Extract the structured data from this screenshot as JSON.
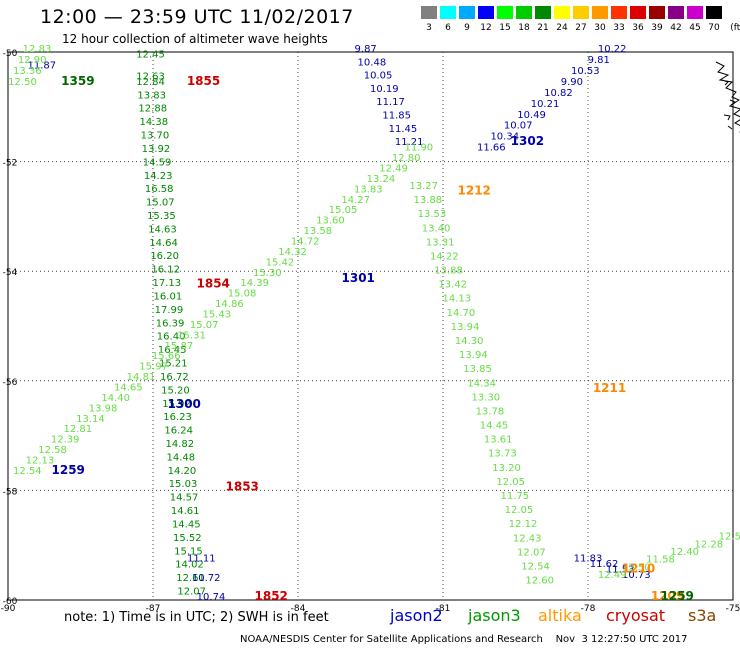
{
  "header": {
    "title": "12:00 — 23:59 UTC 11/02/2017",
    "subtitle": "12 hour collection of altimeter wave heights"
  },
  "colorbar": {
    "unit": "(ft)",
    "swatches": [
      {
        "label": "3",
        "color": "#808080"
      },
      {
        "label": "6",
        "color": "#00ffff"
      },
      {
        "label": "9",
        "color": "#00aaff"
      },
      {
        "label": "12",
        "color": "#0000ff"
      },
      {
        "label": "15",
        "color": "#00ff00"
      },
      {
        "label": "18",
        "color": "#00cc00"
      },
      {
        "label": "21",
        "color": "#008800"
      },
      {
        "label": "24",
        "color": "#ffff00"
      },
      {
        "label": "27",
        "color": "#ffcc00"
      },
      {
        "label": "30",
        "color": "#ff9900"
      },
      {
        "label": "33",
        "color": "#ff3300"
      },
      {
        "label": "36",
        "color": "#dd0000"
      },
      {
        "label": "39",
        "color": "#990000"
      },
      {
        "label": "42",
        "color": "#880088"
      },
      {
        "label": "45",
        "color": "#cc00cc"
      },
      {
        "label": "70",
        "color": "#000000"
      }
    ]
  },
  "axes": {
    "x_ticks": [
      {
        "lon": -90,
        "label": "-90"
      },
      {
        "lon": -87,
        "label": "-87"
      },
      {
        "lon": -84,
        "label": "-84"
      },
      {
        "lon": -81,
        "label": "-81"
      },
      {
        "lon": -78,
        "label": "-78"
      },
      {
        "lon": -75,
        "label": "-75"
      }
    ],
    "y_ticks": [
      {
        "lat": -50,
        "label": "-50"
      },
      {
        "lat": -52,
        "label": "-52"
      },
      {
        "lat": -54,
        "label": "-54"
      },
      {
        "lat": -56,
        "label": "-56"
      },
      {
        "lat": -58,
        "label": "-58"
      },
      {
        "lat": -60,
        "label": "-60"
      }
    ],
    "lon_range": [
      -90,
      -75
    ],
    "lat_range": [
      -50,
      -60
    ]
  },
  "chart_data": {
    "type": "scatter",
    "series": [
      {
        "name": "jason3",
        "color": "#008800",
        "start_lon": -87.05,
        "start_lat": -50.6,
        "end_lon": -86.2,
        "end_lat": -59.9,
        "values": [
          "12.84",
          "13.83",
          "12.88",
          "14.38",
          "13.70",
          "13.92",
          "14.59",
          "14.23",
          "16.58",
          "15.07",
          "15.35",
          "14.63",
          "14.64",
          "16.20",
          "16.12",
          "17.13",
          "16.01",
          "17.99",
          "16.39",
          "16.40",
          "16.45",
          "15.21",
          "16.72",
          "15.20",
          "15.92",
          "16.23",
          "16.24",
          "14.82",
          "14.48",
          "14.20",
          "15.03",
          "14.57",
          "14.61",
          "14.45",
          "15.52",
          "15.15",
          "14.02",
          "12.61",
          "12.07"
        ]
      },
      {
        "name": "jason3",
        "color": "#008800",
        "start_lon": -87.05,
        "start_lat": -50.1,
        "end_lon": -87.05,
        "end_lat": -50.5,
        "values": [
          "12.45",
          "12.63"
        ]
      },
      {
        "name": "jason2",
        "color": "#0000aa",
        "start_lon": -86.0,
        "start_lat": -59.3,
        "end_lon": -85.8,
        "end_lat": -60.0,
        "values": [
          "11.11",
          "10.72",
          "10.74"
        ]
      },
      {
        "name": "jason2",
        "color": "#0000aa",
        "start_lon": -82.6,
        "start_lat": -50.0,
        "end_lon": -81.7,
        "end_lat": -51.7,
        "values": [
          "9.87",
          "10.48",
          "10.05",
          "10.19",
          "11.17",
          "11.85",
          "11.45",
          "11.21"
        ]
      },
      {
        "name": "jason2",
        "color": "#0000aa",
        "start_lon": -77.5,
        "start_lat": -50.0,
        "end_lon": -80.0,
        "end_lat": -51.8,
        "values": [
          "10.22",
          "9.81",
          "10.53",
          "9.90",
          "10.82",
          "10.21",
          "10.49",
          "10.07",
          "10.34",
          "11.66"
        ]
      },
      {
        "name": "jason3",
        "color": "#66dd44",
        "start_lon": -81.4,
        "start_lat": -52.5,
        "end_lon": -79.0,
        "end_lat": -59.7,
        "values": [
          "13.27",
          "13.88",
          "13.53",
          "13.40",
          "13.31",
          "14.22",
          "13.88",
          "13.42",
          "14.13",
          "14.70",
          "13.94",
          "14.30",
          "13.94",
          "13.85",
          "14.34",
          "13.30",
          "13.78",
          "14.45",
          "13.61",
          "13.73",
          "13.20",
          "12.05",
          "11.75",
          "12.05",
          "12.12",
          "12.43",
          "12.07",
          "12.54",
          "12.60"
        ]
      },
      {
        "name": "jason3",
        "color": "#66dd44",
        "start_lon": -89.6,
        "start_lat": -57.7,
        "end_lon": -81.5,
        "end_lat": -51.8,
        "values": [
          "12.54",
          "12.13",
          "12.58",
          "12.39",
          "12.81",
          "13.14",
          "13.98",
          "14.40",
          "14.65",
          "14.81",
          "15.97",
          "15.66",
          "15.87",
          "15.31",
          "15.07",
          "15.43",
          "14.86",
          "15.08",
          "14.39",
          "15.30",
          "15.42",
          "14.32",
          "14.72",
          "13.58",
          "13.60",
          "15.05",
          "14.27",
          "13.83",
          "13.24",
          "12.49",
          "12.80",
          "11.90"
        ]
      },
      {
        "name": "jason2",
        "color": "#0000aa",
        "start_lon": -78.0,
        "start_lat": -59.3,
        "end_lon": -77.0,
        "end_lat": -59.6,
        "values": [
          "11.83",
          "11.62",
          "11.53",
          "10.73"
        ]
      },
      {
        "name": "jason3",
        "color": "#66dd44",
        "start_lon": -77.5,
        "start_lat": -59.6,
        "end_lon": -75.0,
        "end_lat": -58.9,
        "values": [
          "12.49",
          "12.50",
          "11.58",
          "12.40",
          "12.28",
          "12.54"
        ]
      },
      {
        "name": "jason2",
        "color": "#0000aa",
        "start_lon": -89.3,
        "start_lat": -50.3,
        "end_lon": -89.3,
        "end_lat": -50.3,
        "values": [
          "11.87"
        ]
      },
      {
        "name": "jason3",
        "color": "#66dd44",
        "start_lon": -89.4,
        "start_lat": -50.0,
        "end_lon": -89.7,
        "end_lat": -50.6,
        "values": [
          "12.83",
          "12.90",
          "13.36",
          "12.50"
        ]
      }
    ],
    "time_labels": [
      {
        "text": "1359",
        "lon": -88.9,
        "lat": -50.6,
        "color": "#006600"
      },
      {
        "text": "1855",
        "lon": -86.3,
        "lat": -50.6,
        "color": "#cc0000"
      },
      {
        "text": "1302",
        "lon": -79.6,
        "lat": -51.7,
        "color": "#0000aa"
      },
      {
        "text": "1212",
        "lon": -80.7,
        "lat": -52.6,
        "color": "#ff8800"
      },
      {
        "text": "1854",
        "lon": -86.1,
        "lat": -54.3,
        "color": "#cc0000"
      },
      {
        "text": "1301",
        "lon": -83.1,
        "lat": -54.2,
        "color": "#0000aa"
      },
      {
        "text": "1211",
        "lon": -77.9,
        "lat": -56.2,
        "color": "#ff8800"
      },
      {
        "text": "1300",
        "lon": -86.7,
        "lat": -56.5,
        "color": "#0000aa"
      },
      {
        "text": "1259",
        "lon": -89.1,
        "lat": -57.7,
        "color": "#0000aa"
      },
      {
        "text": "1853",
        "lon": -85.5,
        "lat": -58.0,
        "color": "#cc0000"
      },
      {
        "text": "1852",
        "lon": -84.9,
        "lat": -60.0,
        "color": "#cc0000"
      },
      {
        "text": "1210",
        "lon": -77.3,
        "lat": -59.5,
        "color": "#ff8800"
      },
      {
        "text": "1209",
        "lon": -76.7,
        "lat": -60.0,
        "color": "#ff8800"
      },
      {
        "text": "1259",
        "lon": -76.5,
        "lat": -60.0,
        "color": "#006600"
      }
    ]
  },
  "footer": {
    "note": "note: 1) Time is in UTC; 2) SWH is in feet",
    "legend": [
      {
        "label": "jason2",
        "color": "#0000cc"
      },
      {
        "label": "jason3",
        "color": "#009900"
      },
      {
        "label": "altika",
        "color": "#ff9900"
      },
      {
        "label": "cryosat",
        "color": "#cc0000"
      },
      {
        "label": "s3a",
        "color": "#884400"
      }
    ],
    "credit": "NOAA/NESDIS Center for Satellite Applications and Research    Nov  3 12:27:50 UTC 2017"
  }
}
